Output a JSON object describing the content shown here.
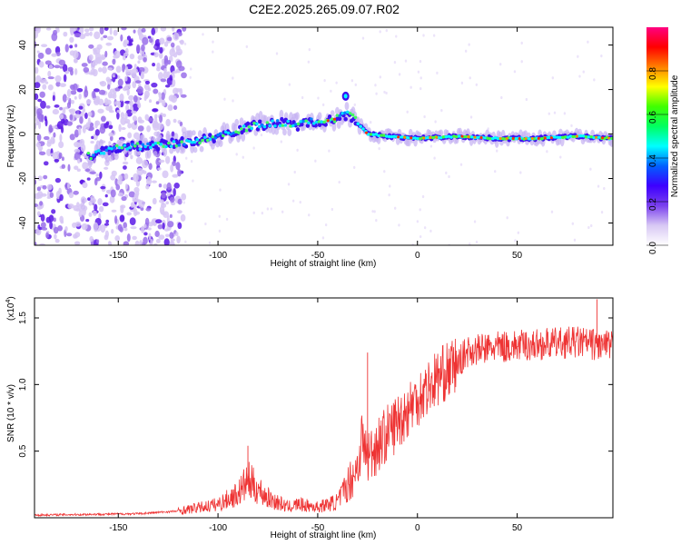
{
  "title": "C2E2.2025.265.09.07.R02",
  "chart_data": [
    {
      "type": "heatmap",
      "xlabel": "Height of straight line (km)",
      "ylabel": "Frequency (Hz)",
      "xlim": [
        -192,
        98
      ],
      "ylim": [
        -50,
        48
      ],
      "xticks": [
        -150,
        -100,
        -50,
        0,
        50
      ],
      "yticks": [
        -40,
        -20,
        0,
        20,
        40
      ],
      "colorbar": {
        "label": "Normalized spectral amplitude",
        "range": [
          0,
          1
        ],
        "ticks": [
          "0.0",
          "0.2",
          "0.4",
          "0.6",
          "0.8"
        ],
        "tick_values": [
          0,
          0.2,
          0.4,
          0.6,
          0.8
        ],
        "colors": [
          "#ffffff",
          "#d8c8f4",
          "#7a40ee",
          "#3d00ff",
          "#0060ff",
          "#00ffff",
          "#00ff60",
          "#40ff00",
          "#ffff00",
          "#ff8000",
          "#ff0000",
          "#ff0080"
        ]
      },
      "ridge": {
        "x": [
          -165,
          -150,
          -130,
          -110,
          -100,
          -90,
          -80,
          -70,
          -60,
          -50,
          -45,
          -40,
          -35,
          -32,
          -28,
          -25,
          -15,
          0,
          20,
          40,
          60,
          80,
          98
        ],
        "y": [
          -10,
          -6,
          -5,
          -3,
          -1,
          2,
          4,
          5,
          4,
          6,
          6,
          7,
          9,
          7,
          3,
          0,
          -1,
          -2,
          -1,
          -2,
          -2,
          -1,
          -2
        ]
      },
      "blob": {
        "x": -36,
        "y": 17
      }
    },
    {
      "type": "line",
      "xlabel": "Height of straight line (km)",
      "ylabel": "SNR (10 * v/v)",
      "scale_label": "(x10",
      "scale_exp": "4",
      "scale_close": ")",
      "xlim": [
        -192,
        98
      ],
      "ylim": [
        0,
        1.65
      ],
      "xticks": [
        -150,
        -100,
        -50,
        0,
        50
      ],
      "yticks": [
        0.5,
        1.0,
        1.5
      ],
      "ytick_labels": [
        "0.5",
        "1.0",
        "1.5"
      ],
      "color": "#ee3333",
      "envelope": {
        "x": [
          -192,
          -140,
          -120,
          -100,
          -90,
          -85,
          -75,
          -65,
          -60,
          -50,
          -40,
          -35,
          -30,
          -28,
          -25,
          -20,
          -10,
          0,
          10,
          20,
          25,
          40,
          60,
          80,
          98
        ],
        "y": [
          0.02,
          0.03,
          0.05,
          0.1,
          0.18,
          0.28,
          0.15,
          0.08,
          0.1,
          0.08,
          0.12,
          0.25,
          0.38,
          0.6,
          0.45,
          0.55,
          0.72,
          0.9,
          1.05,
          1.15,
          1.25,
          1.28,
          1.3,
          1.32,
          1.28
        ]
      },
      "spikes": [
        {
          "x": -85,
          "y": 0.54
        },
        {
          "x": -25,
          "y": 1.24
        },
        {
          "x": 90,
          "y": 1.64
        }
      ]
    }
  ]
}
